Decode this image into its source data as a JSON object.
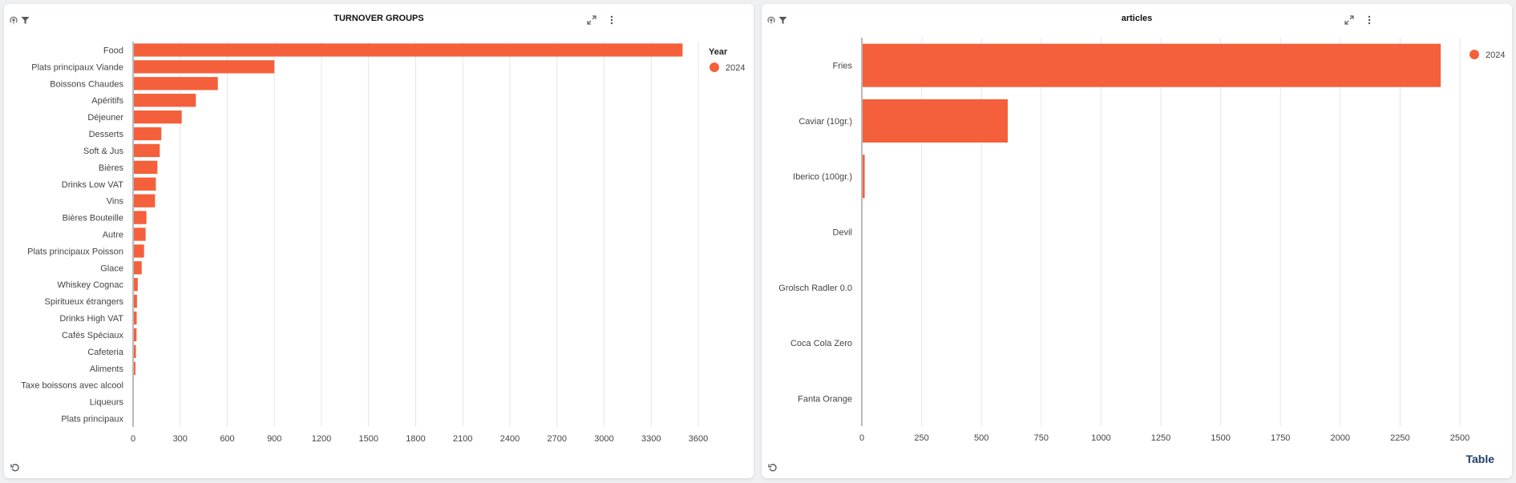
{
  "colors": {
    "bar": "#f4603b",
    "grid": "#e6e6e6",
    "axis": "#b9b9b9",
    "text": "#444444"
  },
  "icons": [
    "podcast-icon",
    "filter-icon",
    "expand-icon",
    "more-vertical-icon",
    "reset-icon"
  ],
  "chart_data": [
    {
      "type": "bar",
      "orientation": "horizontal",
      "title": "TURNOVER GROUPS",
      "categories": [
        "Food",
        "Plats principaux Viande",
        "Boissons Chaudes",
        "Apéritifs",
        "Déjeuner",
        "Desserts",
        "Soft & Jus",
        "Bières",
        "Drinks Low VAT",
        "Vins",
        "Bières Bouteille",
        "Autre",
        "Plats principaux Poisson",
        "Glace",
        "Whiskey Cognac",
        "Spiritueux étrangers",
        "Drinks High VAT",
        "Cafés Spéciaux",
        "Cafeteria",
        "Aliments",
        "Taxe boissons avec alcool",
        "Liqueurs",
        "Plats principaux"
      ],
      "series": [
        {
          "name": "2024",
          "values": [
            3500,
            900,
            540,
            400,
            310,
            180,
            170,
            155,
            145,
            140,
            85,
            80,
            70,
            55,
            30,
            25,
            23,
            22,
            18,
            15,
            3,
            2,
            2
          ]
        }
      ],
      "xlim": [
        0,
        3600
      ],
      "xticks": [
        0,
        300,
        600,
        900,
        1200,
        1500,
        1800,
        2100,
        2400,
        2700,
        3000,
        3300,
        3600
      ],
      "legend_title": "Year",
      "legend_position": "top-right",
      "grid": true
    },
    {
      "type": "bar",
      "orientation": "horizontal",
      "title": "articles",
      "categories": [
        "Fries",
        "Caviar (10gr.)",
        "Iberico (100gr.)",
        "Devil",
        "Grolsch Radler 0.0",
        "Coca Cola Zero",
        "Fanta Orange"
      ],
      "series": [
        {
          "name": "2024",
          "values": [
            2420,
            610,
            12,
            2,
            1,
            1,
            1
          ]
        }
      ],
      "xlim": [
        0,
        2500
      ],
      "xticks": [
        0,
        250,
        500,
        750,
        1000,
        1250,
        1500,
        1750,
        2000,
        2250,
        2500
      ],
      "legend_position": "top-right",
      "grid": true,
      "table_link": "Table"
    }
  ]
}
